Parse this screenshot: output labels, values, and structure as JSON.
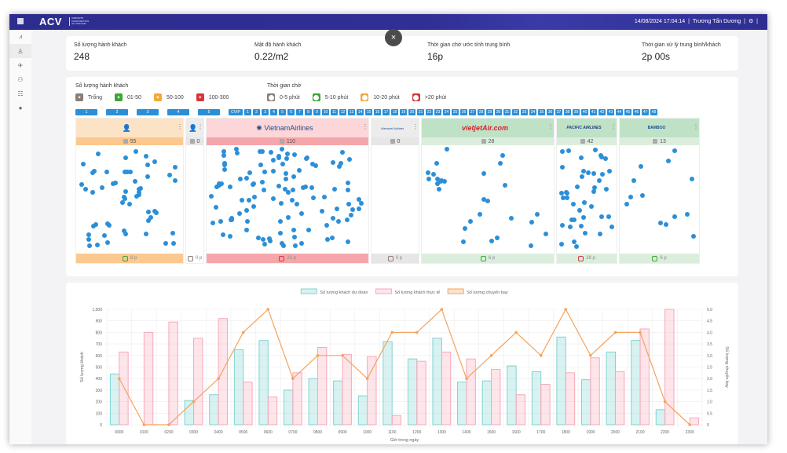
{
  "header": {
    "logo": "ACV",
    "logo_subtitle": "AIRPORTS CORPORATION OF VIETNAM",
    "datetime": "14/08/2024 17:04:14",
    "user": "Trương Tấn Dương",
    "separator": "|"
  },
  "sidebar": {
    "items": [
      {
        "name": "chart-line-icon",
        "glyph": "⩘"
      },
      {
        "name": "passenger-icon",
        "glyph": "♙"
      },
      {
        "name": "airplane-icon",
        "glyph": "✈"
      },
      {
        "name": "group-icon",
        "glyph": "⚇"
      },
      {
        "name": "list-icon",
        "glyph": "☷"
      },
      {
        "name": "globe-icon",
        "glyph": "●"
      }
    ]
  },
  "kpis": [
    {
      "label": "Số lượng hành khách",
      "value": "248"
    },
    {
      "label": "Mật độ hành khách",
      "value": "0.22/m2"
    },
    {
      "label": "Thời gian chờ ước tính trung bình",
      "value": "16p"
    },
    {
      "label": "Thời gian xử lý trung bình/khách",
      "value": "2p 00s"
    }
  ],
  "close_label": "×",
  "legend": {
    "passenger_title": "Số lượng hành khách",
    "passenger_items": [
      {
        "label": "Trống",
        "color": "#8d7b75"
      },
      {
        "label": "01-50",
        "color": "#3aa63a"
      },
      {
        "label": "50-100",
        "color": "#f4a83a"
      },
      {
        "label": "100-300",
        "color": "#d6363a"
      }
    ],
    "wait_title": "Thời gian chờ",
    "wait_items": [
      {
        "label": "0-5 phút",
        "color": "#8d7b75"
      },
      {
        "label": "5-10 phút",
        "color": "#3aa63a"
      },
      {
        "label": "10-20 phút",
        "color": "#f4a83a"
      },
      {
        "label": ">20 phút",
        "color": "#d6363a"
      }
    ]
  },
  "counters": {
    "wide": [
      "1",
      "2",
      "3",
      "4",
      "5"
    ],
    "vip": "CVIP",
    "numbered": [
      "1",
      "2",
      "3",
      "4",
      "5",
      "6",
      "7",
      "8",
      "9",
      "10",
      "11",
      "12",
      "13",
      "14",
      "15",
      "16",
      "17",
      "18",
      "19",
      "20",
      "21",
      "22",
      "23",
      "24",
      "25",
      "26",
      "27",
      "28",
      "29",
      "30",
      "31",
      "32",
      "33",
      "34",
      "35",
      "36",
      "37",
      "38",
      "39",
      "40",
      "41",
      "42",
      "43",
      "44",
      "45",
      "46",
      "47",
      "48"
    ]
  },
  "zones": [
    {
      "name": "priority",
      "title": "",
      "logo_icon": "priority-passenger-icon",
      "count": "55",
      "wait": "8 p",
      "head_bg": "#fde3c6",
      "count_bg": "#fbc98e",
      "foot_bg": "#fbc98e",
      "foot_color": "#3aa63a"
    },
    {
      "name": "cvip",
      "title": "",
      "logo_icon": "vip-passenger-icon",
      "count": "0",
      "wait": "0 p",
      "head_bg": "#ececec",
      "count_bg": "#e6e6e6",
      "foot_bg": "#ffffff",
      "foot_color": "#8d7b75"
    },
    {
      "name": "vietnam-airlines",
      "title": "VietnamAirlines",
      "logo_icon": "lotus-icon",
      "count": "110",
      "wait": "22 p",
      "head_bg": "#fcd6d8",
      "count_bg": "#f5a6aa",
      "foot_bg": "#f5a6aa",
      "foot_color": "#d6363a"
    },
    {
      "name": "vietravel-airlines",
      "title": "Vietravel Airlines",
      "logo_icon": "vietravel-logo-icon",
      "count": "0",
      "wait": "0 p",
      "head_bg": "#ececec",
      "count_bg": "#e6e6e6",
      "foot_bg": "#e6e6e6",
      "foot_color": "#8d7b75"
    },
    {
      "name": "vietjet",
      "title": "vietjetAir.com",
      "logo_icon": "vietjet-logo-icon",
      "count": "28",
      "wait": "6 p",
      "head_bg": "#bfe2c6",
      "count_bg": "#dbeedd",
      "foot_bg": "#dbeedd",
      "foot_color": "#3aa63a"
    },
    {
      "name": "pacific-airlines",
      "title": "PACIFIC AIRLINES",
      "logo_icon": "pacific-logo-icon",
      "count": "42",
      "wait": "28 p",
      "head_bg": "#bfe2c6",
      "count_bg": "#dbeedd",
      "foot_bg": "#dbeedd",
      "foot_color": "#d6363a"
    },
    {
      "name": "bamboo-airways",
      "title": "BAMBOO",
      "logo_icon": "bamboo-logo-icon",
      "count": "13",
      "wait": "6 p",
      "head_bg": "#bfe2c6",
      "count_bg": "#dbeedd",
      "foot_bg": "#dbeedd",
      "foot_color": "#3aa63a"
    }
  ],
  "chart_data": {
    "type": "bar",
    "title": "",
    "xlabel": "Giờ trong ngày",
    "ylabel": "Số lượng khách",
    "y2label": "Số lượng chuyến bay",
    "ylim": [
      0,
      1000
    ],
    "y2lim": [
      0,
      5
    ],
    "yticks": [
      "0",
      "100",
      "200",
      "300",
      "400",
      "500",
      "600",
      "700",
      "800",
      "900",
      "1,000"
    ],
    "y2ticks": [
      "0",
      "0.5",
      "1.0",
      "1.5",
      "2.0",
      "2.5",
      "3.0",
      "3.5",
      "4.0",
      "4.5",
      "5.0"
    ],
    "grid": true,
    "legend_position": "top",
    "categories": [
      "0000",
      "0100",
      "0200",
      "0300",
      "0400",
      "0500",
      "0600",
      "0700",
      "0800",
      "0900",
      "1000",
      "1100",
      "1200",
      "1300",
      "1400",
      "1500",
      "1600",
      "1700",
      "1800",
      "1900",
      "2000",
      "2100",
      "2200",
      "2300"
    ],
    "series": [
      {
        "name": "Số lượng khách dự đoán",
        "type": "bar",
        "axis": "left",
        "color": "#7fd3cf",
        "values": [
          440,
          0,
          0,
          210,
          260,
          650,
          730,
          300,
          400,
          380,
          250,
          720,
          570,
          750,
          370,
          380,
          510,
          460,
          760,
          390,
          630,
          730,
          130,
          0
        ]
      },
      {
        "name": "Số lượng khách thực tế",
        "type": "bar",
        "axis": "left",
        "color": "#f7a8bb",
        "values": [
          630,
          800,
          890,
          750,
          920,
          370,
          240,
          450,
          670,
          610,
          590,
          80,
          550,
          630,
          570,
          480,
          260,
          350,
          450,
          580,
          460,
          830,
          1000,
          60
        ]
      },
      {
        "name": "Số lượng chuyến bay",
        "type": "line",
        "axis": "right",
        "color": "#f5a35c",
        "values": [
          2,
          0,
          0,
          1,
          2,
          4,
          5,
          2,
          3,
          3,
          2,
          4,
          4,
          5,
          2,
          3,
          4,
          3,
          5,
          3,
          4,
          4,
          1,
          0
        ]
      }
    ]
  }
}
